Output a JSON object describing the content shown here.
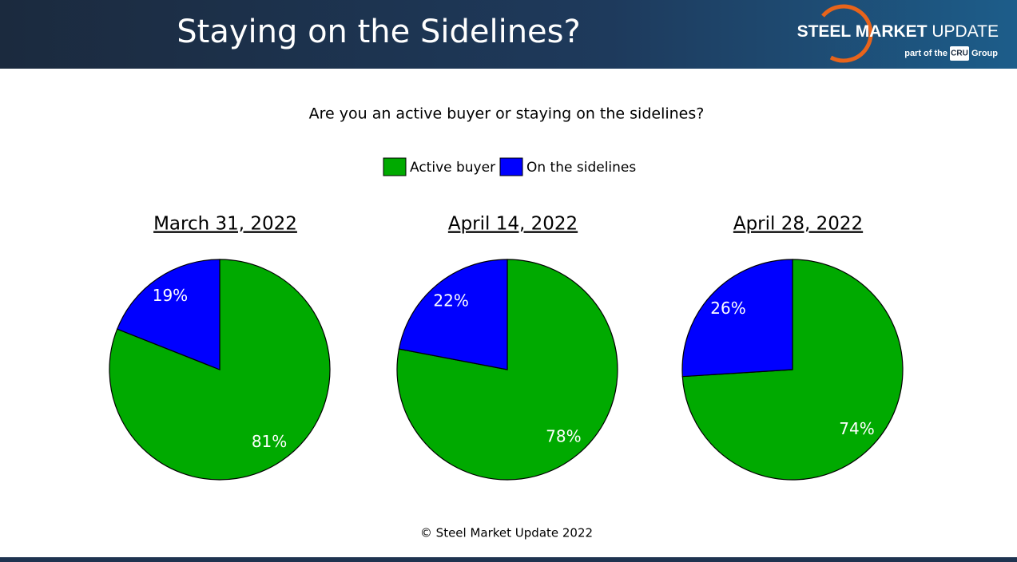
{
  "header": {
    "title": "Staying on the Sidelines?",
    "logo": {
      "brand_bold": "STEEL MARKET",
      "brand_light": "UPDATE",
      "tagline_pre": "part of the",
      "badge": "CRU",
      "tagline_post": "Group"
    }
  },
  "question": "Are you an active buyer or staying on the sidelines?",
  "chart_data": [
    {
      "type": "pie",
      "title": "March 31, 2022",
      "categories": [
        "Active buyer",
        "On the sidelines"
      ],
      "values": [
        81,
        19
      ],
      "value_labels": [
        "81%",
        "19%"
      ],
      "colors": [
        "#00aa00",
        "#0000ff"
      ]
    },
    {
      "type": "pie",
      "title": "April 14, 2022",
      "categories": [
        "Active buyer",
        "On the sidelines"
      ],
      "values": [
        78,
        22
      ],
      "value_labels": [
        "78%",
        "22%"
      ],
      "colors": [
        "#00aa00",
        "#0000ff"
      ]
    },
    {
      "type": "pie",
      "title": "April 28, 2022",
      "categories": [
        "Active buyer",
        "On the sidelines"
      ],
      "values": [
        74,
        26
      ],
      "value_labels": [
        "74%",
        "26%"
      ],
      "colors": [
        "#00aa00",
        "#0000ff"
      ]
    }
  ],
  "footer": "© Steel Market Update 2022"
}
